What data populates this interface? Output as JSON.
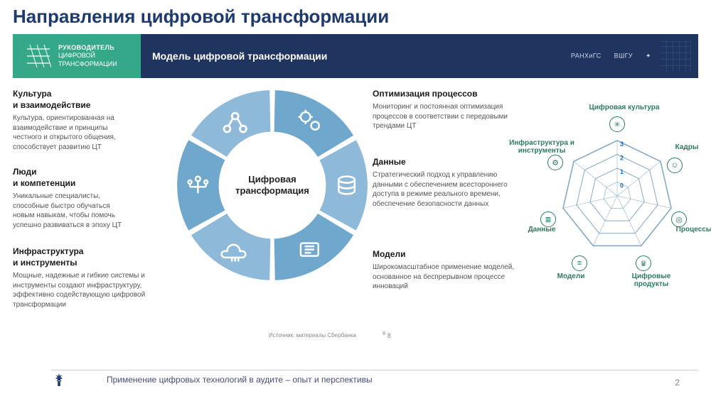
{
  "title": "Направления цифровой трансформации",
  "banner": {
    "left_line1": "РУКОВОДИТЕЛЬ",
    "left_line2": "ЦИФРОВОЙ",
    "left_line3": "ТРАНСФОРМАЦИИ",
    "right_title": "Модель цифровой трансформации",
    "logo1": "РАНХиГС",
    "logo2": "ВШГУ",
    "logo3": "✦"
  },
  "donut": {
    "center": "Цифровая трансформация",
    "colors": {
      "base": "#8fb9d8",
      "alt": "#6fa7cd",
      "sep": "#ffffff",
      "icon": "#ffffff"
    },
    "segments": 6,
    "outer_r": 120,
    "inner_r": 66,
    "slice_labels": [
      "Культура и взаимодействие",
      "Оптимизация процессов",
      "Данные",
      "Модели",
      "Инфраструктура и инструменты",
      "Люди и компетенции"
    ]
  },
  "descriptions": {
    "culture": {
      "h": "Культура\nи взаимодействие",
      "b": "Культура, ориентированная на взаимодействие и принципы честного и открытого общения, способствует развитию ЦТ"
    },
    "people": {
      "h": "Люди\nи компетенции",
      "b": "Уникальные специалисты, способные быстро обучаться новым навыкам, чтобы помочь успешно развиваться в эпоху ЦТ"
    },
    "infra": {
      "h": "Инфраструктура\nи инструменты",
      "b": "Мощные, надежные и гибкие системы и инструменты создают инфраструктуру, эффективно содействующую цифровой трансформации"
    },
    "process": {
      "h": "Оптимизация процессов",
      "b": "Мониторинг и постоянная оптимизация процессов в соответствии с передовыми трендами ЦТ"
    },
    "data": {
      "h": "Данные",
      "b": "Стратегический подход к управлению данными с обеспечением всестороннего доступа в режиме реального времени, обеспечение безопасности данных"
    },
    "models": {
      "h": "Модели",
      "b": "Широкомасштабное применение моделей, основанное на беспрерывном процессе инноваций"
    }
  },
  "radar": {
    "axes": [
      "Цифровая культура",
      "Кадры",
      "Процессы",
      "Цифровые продукты",
      "Модели",
      "Данные",
      "Инфраструктура и инструменты"
    ],
    "rings": [
      0,
      1,
      2,
      3
    ],
    "ring_color": "#7aa0bd",
    "label_color": "#2d7a63",
    "tick_color": "#1f6fbf",
    "icon_border": "#2d7a63",
    "max_r": 78
  },
  "source_note": "Источник: материалы Сбербанка",
  "page8": "8",
  "footer": {
    "text": "Применение цифровых технологий в аудите – опыт и перспективы",
    "page": "2"
  },
  "palette": {
    "title": "#1f3a6e",
    "banner_left": "#35a88a",
    "banner_right": "#1f355f",
    "text_muted": "#555555",
    "footer_text": "#4a4a7a"
  }
}
